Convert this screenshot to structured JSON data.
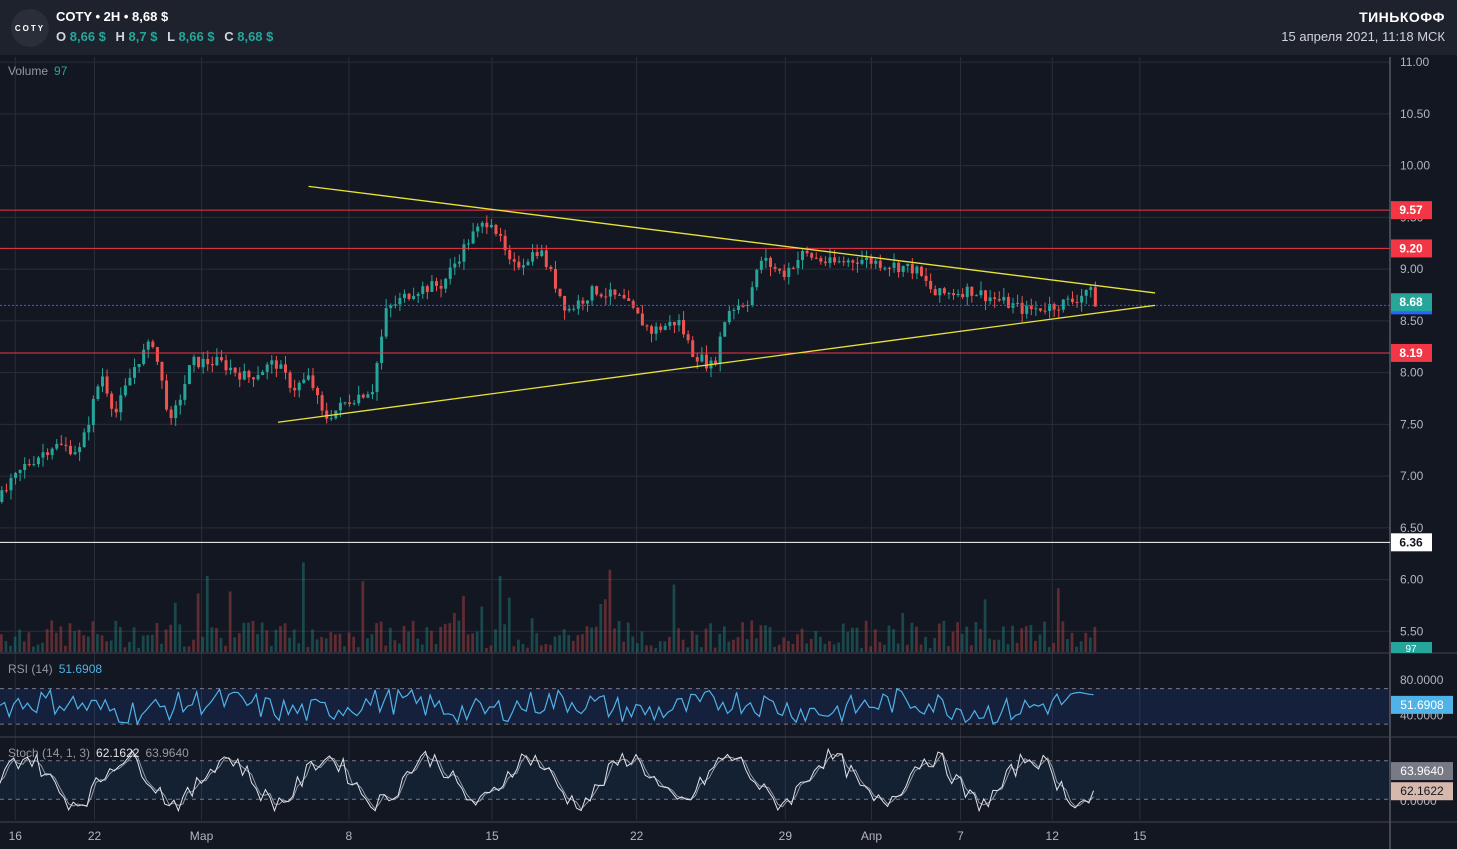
{
  "header": {
    "logo_text": "COTY",
    "title": "COTY • 2H • 8,68 $",
    "ohlc": [
      {
        "label": "O",
        "value": "8,66 $"
      },
      {
        "label": "H",
        "value": "8,7 $"
      },
      {
        "label": "L",
        "value": "8,66 $"
      },
      {
        "label": "C",
        "value": "8,68 $"
      }
    ],
    "brand": "ТИНЬКОФФ",
    "datetime": "15 апреля 2021, 11:18 МСК"
  },
  "indicators": {
    "volume": {
      "name": "Volume",
      "value": "97"
    },
    "rsi": {
      "name": "RSI (14)",
      "value": "51.6908",
      "ticks": [
        "80.0000",
        "40.0000"
      ],
      "badge": "51.6908"
    },
    "stoch": {
      "name": "Stoch (14, 1, 3)",
      "k": "62.1622",
      "d": "63.9640",
      "ticks": [
        "0.0000"
      ],
      "badge_d": "63.9640",
      "badge_k": "62.1622"
    }
  },
  "colors": {
    "background": "#131722",
    "up": "#26a69a",
    "down": "#ef5350",
    "trendline": "#e8e337",
    "level": "#f23645",
    "current_level": "#2962ff"
  },
  "chart_data": {
    "type": "candlestick",
    "x_ticks": [
      "16",
      "22",
      "Мар",
      "8",
      "15",
      "22",
      "29",
      "Апр",
      "7",
      "12",
      "15"
    ],
    "y_ticks": [
      "11.00",
      "10.50",
      "10.00",
      "9.50",
      "9.00",
      "8.50",
      "8.00",
      "7.50",
      "7.00",
      "6.50",
      "6.00",
      "5.50"
    ],
    "ylim": [
      5.3,
      11.05
    ],
    "levels": [
      {
        "value": 9.57,
        "label": "9.57",
        "color": "#f23645"
      },
      {
        "value": 9.2,
        "label": "9.20",
        "color": "#f23645"
      },
      {
        "value": 8.19,
        "label": "8.19",
        "color": "#f23645"
      },
      {
        "value": 8.65,
        "label": "8.65",
        "color": "#2962ff"
      },
      {
        "value": 6.36,
        "label": "6.36",
        "color": "#ffffff"
      }
    ],
    "last_price": {
      "value": 8.68,
      "label": "8.68"
    },
    "volume_badge": "97",
    "trendlines": [
      {
        "from": [
          0.222,
          9.8
        ],
        "to": [
          0.831,
          8.77
        ]
      },
      {
        "from": [
          0.2,
          7.52
        ],
        "to": [
          0.831,
          8.65
        ]
      }
    ],
    "price_path": [
      [
        0.0,
        6.75
      ],
      [
        0.02,
        7.1
      ],
      [
        0.04,
        7.3
      ],
      [
        0.06,
        7.25
      ],
      [
        0.075,
        8.0
      ],
      [
        0.085,
        7.6
      ],
      [
        0.1,
        8.1
      ],
      [
        0.112,
        8.3
      ],
      [
        0.125,
        7.5
      ],
      [
        0.14,
        8.1
      ],
      [
        0.16,
        8.1
      ],
      [
        0.18,
        7.95
      ],
      [
        0.2,
        8.1
      ],
      [
        0.213,
        7.85
      ],
      [
        0.225,
        7.95
      ],
      [
        0.235,
        7.55
      ],
      [
        0.255,
        7.75
      ],
      [
        0.27,
        7.85
      ],
      [
        0.28,
        8.6
      ],
      [
        0.3,
        8.8
      ],
      [
        0.32,
        8.85
      ],
      [
        0.34,
        9.3
      ],
      [
        0.355,
        9.5
      ],
      [
        0.37,
        9.0
      ],
      [
        0.39,
        9.2
      ],
      [
        0.41,
        8.6
      ],
      [
        0.43,
        8.8
      ],
      [
        0.45,
        8.7
      ],
      [
        0.47,
        8.4
      ],
      [
        0.49,
        8.5
      ],
      [
        0.5,
        8.2
      ],
      [
        0.515,
        8.05
      ],
      [
        0.525,
        8.6
      ],
      [
        0.54,
        8.7
      ],
      [
        0.55,
        9.1
      ],
      [
        0.565,
        8.95
      ],
      [
        0.58,
        9.15
      ],
      [
        0.6,
        9.05
      ],
      [
        0.62,
        9.1
      ],
      [
        0.64,
        9.05
      ],
      [
        0.66,
        9.0
      ],
      [
        0.675,
        8.75
      ],
      [
        0.69,
        8.78
      ],
      [
        0.7,
        8.8
      ],
      [
        0.72,
        8.7
      ],
      [
        0.74,
        8.6
      ],
      [
        0.76,
        8.65
      ],
      [
        0.775,
        8.7
      ],
      [
        0.785,
        8.82
      ],
      [
        0.79,
        8.68
      ]
    ],
    "rsi_ylim": [
      20,
      100
    ],
    "stoch_ylim": [
      0,
      100
    ]
  }
}
